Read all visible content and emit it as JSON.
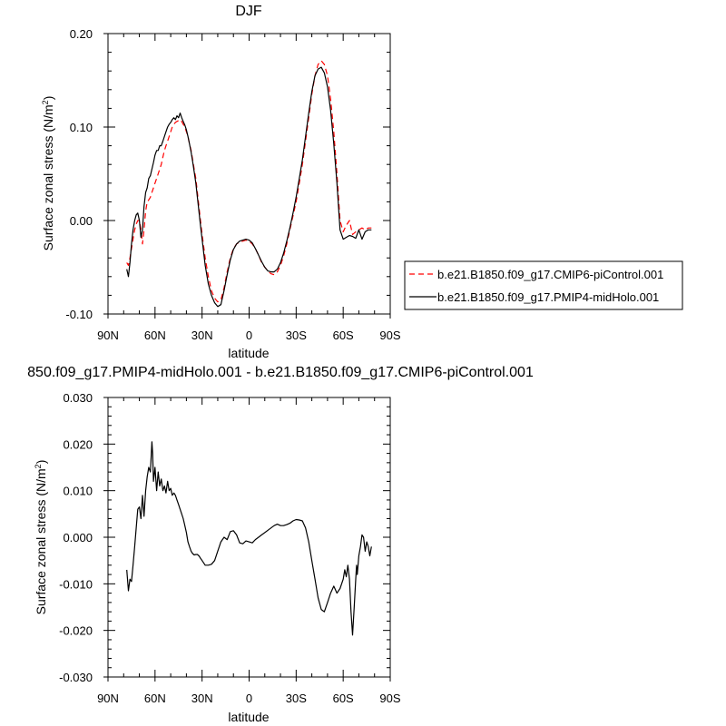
{
  "chart_data": [
    {
      "type": "line",
      "title": "DJF",
      "xlabel": "latitude",
      "ylabel": "Surface zonal stress (N/m",
      "ylabel_superscript": "2",
      "ylabel_suffix": ")",
      "xlim": [
        90,
        -90
      ],
      "ylim": [
        -0.1,
        0.2
      ],
      "x_ticks": [
        90,
        60,
        30,
        0,
        -30,
        -60,
        -90
      ],
      "x_tick_labels": [
        "90N",
        "60N",
        "30N",
        "0",
        "30S",
        "60S",
        "90S"
      ],
      "y_ticks": [
        -0.1,
        0.0,
        0.1,
        0.2
      ],
      "y_tick_labels": [
        "-0.10",
        "0.00",
        "0.10",
        "0.20"
      ],
      "grid": false,
      "legend_position": "right",
      "legend": [
        {
          "label": "b.e21.B1850.f09_g17.CMIP6-piControl.001",
          "color": "#ff0000",
          "style": "dashed"
        },
        {
          "label": "b.e21.B1850.f09_g17.PMIP4-midHolo.001",
          "color": "#000000",
          "style": "solid"
        }
      ],
      "series": [
        {
          "name": "b.e21.B1850.f09_g17.CMIP6-piControl.001",
          "color": "#ff0000",
          "style": "dashed",
          "x": [
            78,
            77,
            76,
            75,
            74,
            73,
            72,
            71,
            70,
            69,
            68,
            67,
            66,
            65,
            64,
            63,
            62,
            61,
            60,
            59,
            58,
            57,
            56,
            55,
            54,
            53,
            52,
            51,
            50,
            49,
            48,
            47,
            46,
            45,
            44,
            43,
            42,
            41,
            40,
            39,
            38,
            37,
            36,
            35,
            34,
            33,
            32,
            31,
            30,
            28,
            26,
            24,
            22,
            20,
            18,
            16,
            14,
            12,
            10,
            8,
            6,
            4,
            2,
            0,
            -2,
            -4,
            -6,
            -8,
            -10,
            -12,
            -14,
            -16,
            -18,
            -20,
            -22,
            -24,
            -26,
            -28,
            -30,
            -32,
            -34,
            -36,
            -38,
            -40,
            -42,
            -44,
            -46,
            -48,
            -50,
            -52,
            -54,
            -56,
            -58,
            -60,
            -62,
            -64,
            -66,
            -68,
            -70,
            -72,
            -74,
            -76,
            -78
          ],
          "values": [
            -0.045,
            -0.048,
            -0.04,
            -0.03,
            -0.02,
            -0.01,
            -0.004,
            0.0,
            0.0,
            -0.01,
            -0.025,
            -0.01,
            0.01,
            0.02,
            0.022,
            0.025,
            0.03,
            0.035,
            0.04,
            0.045,
            0.05,
            0.055,
            0.06,
            0.068,
            0.075,
            0.08,
            0.085,
            0.09,
            0.095,
            0.1,
            0.103,
            0.105,
            0.106,
            0.107,
            0.108,
            0.106,
            0.103,
            0.1,
            0.095,
            0.09,
            0.082,
            0.075,
            0.065,
            0.055,
            0.045,
            0.03,
            0.015,
            0.0,
            -0.015,
            -0.04,
            -0.06,
            -0.075,
            -0.083,
            -0.087,
            -0.085,
            -0.072,
            -0.055,
            -0.04,
            -0.03,
            -0.025,
            -0.023,
            -0.022,
            -0.021,
            -0.022,
            -0.025,
            -0.03,
            -0.037,
            -0.045,
            -0.05,
            -0.054,
            -0.057,
            -0.058,
            -0.055,
            -0.048,
            -0.038,
            -0.025,
            -0.01,
            0.005,
            0.02,
            0.04,
            0.06,
            0.085,
            0.11,
            0.135,
            0.155,
            0.167,
            0.171,
            0.167,
            0.155,
            0.13,
            0.095,
            0.05,
            0.0,
            -0.012,
            -0.005,
            0.0,
            -0.015,
            -0.012,
            -0.01,
            -0.008,
            -0.01,
            -0.008,
            -0.008
          ]
        },
        {
          "name": "b.e21.B1850.f09_g17.PMIP4-midHolo.001",
          "color": "#000000",
          "style": "solid",
          "x": [
            78,
            77,
            76,
            75,
            74,
            73,
            72,
            71,
            70,
            69,
            68,
            67,
            66,
            65,
            64,
            63,
            62,
            61,
            60,
            59,
            58,
            57,
            56,
            55,
            54,
            53,
            52,
            51,
            50,
            49,
            48,
            47,
            46,
            45,
            44,
            43,
            42,
            41,
            40,
            39,
            38,
            37,
            36,
            35,
            34,
            33,
            32,
            31,
            30,
            28,
            26,
            24,
            22,
            20,
            18,
            16,
            14,
            12,
            10,
            8,
            6,
            4,
            2,
            0,
            -2,
            -4,
            -6,
            -8,
            -10,
            -12,
            -14,
            -16,
            -18,
            -20,
            -22,
            -24,
            -26,
            -28,
            -30,
            -32,
            -34,
            -36,
            -38,
            -40,
            -42,
            -44,
            -46,
            -48,
            -50,
            -52,
            -54,
            -56,
            -58,
            -60,
            -62,
            -64,
            -66,
            -68,
            -70,
            -72,
            -74,
            -76,
            -78
          ],
          "values": [
            -0.052,
            -0.06,
            -0.045,
            -0.025,
            -0.01,
            0.0,
            0.006,
            0.008,
            0.0,
            -0.018,
            -0.01,
            0.015,
            0.03,
            0.035,
            0.045,
            0.048,
            0.055,
            0.062,
            0.07,
            0.075,
            0.075,
            0.08,
            0.08,
            0.085,
            0.09,
            0.095,
            0.1,
            0.103,
            0.105,
            0.108,
            0.11,
            0.108,
            0.112,
            0.11,
            0.115,
            0.11,
            0.106,
            0.102,
            0.097,
            0.09,
            0.082,
            0.073,
            0.063,
            0.052,
            0.04,
            0.025,
            0.01,
            -0.005,
            -0.02,
            -0.048,
            -0.068,
            -0.08,
            -0.088,
            -0.092,
            -0.09,
            -0.075,
            -0.058,
            -0.042,
            -0.031,
            -0.025,
            -0.022,
            -0.021,
            -0.02,
            -0.021,
            -0.024,
            -0.03,
            -0.037,
            -0.044,
            -0.05,
            -0.054,
            -0.055,
            -0.055,
            -0.052,
            -0.045,
            -0.035,
            -0.022,
            -0.008,
            0.008,
            0.025,
            0.045,
            0.065,
            0.09,
            0.115,
            0.138,
            0.155,
            0.162,
            0.164,
            0.158,
            0.143,
            0.118,
            0.082,
            0.04,
            -0.01,
            -0.02,
            -0.018,
            -0.016,
            -0.017,
            -0.019,
            -0.01,
            -0.02,
            -0.012,
            -0.01,
            -0.01
          ]
        }
      ]
    },
    {
      "type": "line",
      "title": "850.f09_g17.PMIP4-midHolo.001 - b.e21.B1850.f09_g17.CMIP6-piControl.001",
      "xlabel": "latitude",
      "ylabel": "Surface zonal stress (N/m",
      "ylabel_superscript": "2",
      "ylabel_suffix": ")",
      "xlim": [
        90,
        -90
      ],
      "ylim": [
        -0.03,
        0.03
      ],
      "x_ticks": [
        90,
        60,
        30,
        0,
        -30,
        -60,
        -90
      ],
      "x_tick_labels": [
        "90N",
        "60N",
        "30N",
        "0",
        "30S",
        "60S",
        "90S"
      ],
      "y_ticks": [
        -0.03,
        -0.02,
        -0.01,
        0.0,
        0.01,
        0.02,
        0.03
      ],
      "y_tick_labels": [
        "-0.030",
        "-0.020",
        "-0.010",
        "0.000",
        "0.010",
        "0.020",
        "0.030"
      ],
      "grid": false,
      "series": [
        {
          "color": "#000000",
          "style": "solid",
          "x": [
            78,
            77,
            76,
            75,
            74,
            73,
            72,
            71,
            70,
            69,
            68,
            67,
            66,
            65,
            64,
            63,
            62,
            61.5,
            61,
            60,
            59,
            58,
            57,
            56,
            55,
            54,
            53,
            52,
            51,
            50,
            49,
            48,
            47,
            46,
            45,
            44,
            43,
            42,
            41,
            40,
            39,
            38,
            37,
            36,
            35,
            34,
            33,
            32,
            31,
            30,
            28,
            26,
            24,
            22,
            20,
            18,
            16,
            14,
            12,
            10,
            8,
            6,
            4,
            2,
            0,
            -2,
            -4,
            -6,
            -8,
            -10,
            -12,
            -14,
            -16,
            -18,
            -20,
            -22,
            -24,
            -26,
            -28,
            -30,
            -32,
            -34,
            -36,
            -38,
            -40,
            -42,
            -44,
            -46,
            -48,
            -50,
            -52,
            -54,
            -56,
            -58,
            -60,
            -61,
            -62,
            -63,
            -64,
            -65,
            -66,
            -67,
            -68,
            -68.5,
            -69,
            -70,
            -71,
            -72,
            -73,
            -74,
            -75,
            -76,
            -77,
            -78
          ],
          "values": [
            -0.007,
            -0.0115,
            -0.009,
            -0.0095,
            -0.006,
            -0.002,
            0.002,
            0.006,
            0.0065,
            0.004,
            0.009,
            0.0045,
            0.01,
            0.013,
            0.015,
            0.014,
            0.0205,
            0.018,
            0.012,
            0.015,
            0.01,
            0.014,
            0.011,
            0.0125,
            0.01,
            0.011,
            0.0095,
            0.012,
            0.01,
            0.0105,
            0.009,
            0.0095,
            0.009,
            0.008,
            0.007,
            0.006,
            0.005,
            0.004,
            0.0025,
            0.001,
            -0.001,
            -0.002,
            -0.003,
            -0.0035,
            -0.0038,
            -0.0037,
            -0.0037,
            -0.004,
            -0.0045,
            -0.005,
            -0.006,
            -0.006,
            -0.0058,
            -0.005,
            -0.003,
            -0.001,
            0.0,
            -0.0005,
            0.0012,
            0.0014,
            0.0005,
            -0.0012,
            -0.0014,
            -0.0008,
            -0.001,
            -0.0012,
            -0.0005,
            0.0,
            0.0005,
            0.001,
            0.0015,
            0.002,
            0.0025,
            0.0028,
            0.0025,
            0.0025,
            0.0027,
            0.003,
            0.0035,
            0.0038,
            0.0037,
            0.0035,
            0.002,
            -0.001,
            -0.005,
            -0.009,
            -0.013,
            -0.0155,
            -0.016,
            -0.014,
            -0.012,
            -0.0105,
            -0.012,
            -0.011,
            -0.009,
            -0.007,
            -0.0085,
            -0.006,
            -0.009,
            -0.016,
            -0.021,
            -0.015,
            -0.009,
            -0.006,
            -0.008,
            -0.004,
            -0.002,
            0.0005,
            0.0,
            -0.003,
            -0.001,
            -0.002,
            -0.004,
            -0.002
          ]
        }
      ]
    }
  ]
}
